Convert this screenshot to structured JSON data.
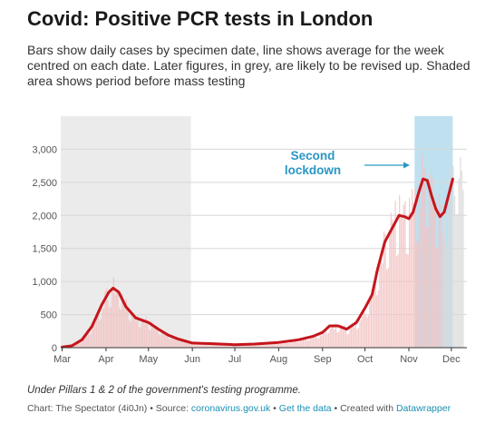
{
  "title": "Covid: Positive PCR tests in London",
  "subtitle": "Bars show daily cases by specimen date, line shows average for the week centred on each date. Later figures, in grey, are likely to be revised up. Shaded area shows period before mass testing",
  "footnote": "Under Pillars 1 & 2 of the government's testing programme.",
  "credits": {
    "prefix": "Chart: The Spectator (4i0Jn) • Source: ",
    "source_link": "coronavirus.gov.uk",
    "sep1": " • ",
    "data_link": "Get the data",
    "sep2": " • Created with ",
    "tool_link": "Datawrapper"
  },
  "colors": {
    "bars": "#f2c3c3",
    "bars_provisional": "#d9d9d9",
    "line": "#c4161c",
    "shade_pre_testing": "#ebebeb",
    "shade_lockdown": "#bfe0ef",
    "annotation": "#2a96c4"
  },
  "chart_data": {
    "type": "bar",
    "title": "Covid: Positive PCR tests in London",
    "xlabel": "",
    "ylabel": "",
    "ylim": [
      0,
      3500
    ],
    "yticks": [
      0,
      500,
      1000,
      1500,
      2000,
      2500,
      3000
    ],
    "ytick_labels": [
      "0",
      "500",
      "1,000",
      "1,500",
      "2,000",
      "2,500",
      "3,000"
    ],
    "xticks": [
      "Mar",
      "Apr",
      "May",
      "Jun",
      "Jul",
      "Aug",
      "Sep",
      "Oct",
      "Nov",
      "Dec"
    ],
    "xtick_dates": [
      "2020-03-01",
      "2020-04-01",
      "2020-05-01",
      "2020-06-01",
      "2020-07-01",
      "2020-08-01",
      "2020-09-01",
      "2020-10-01",
      "2020-11-01",
      "2020-12-01"
    ],
    "grid": true,
    "shaded_regions": [
      {
        "start": "2020-02-29",
        "end": "2020-05-31"
      },
      {
        "start": "2020-11-05",
        "end": "2020-12-02"
      }
    ],
    "annotation": {
      "text_line1": "Second",
      "text_line2": "lockdown",
      "date": "2020-11-05",
      "value": 2750
    },
    "series": [
      {
        "kind": "line",
        "points": [
          [
            "2020-03-01",
            10
          ],
          [
            "2020-03-08",
            30
          ],
          [
            "2020-03-15",
            120
          ],
          [
            "2020-03-22",
            320
          ],
          [
            "2020-03-29",
            650
          ],
          [
            "2020-04-03",
            840
          ],
          [
            "2020-04-06",
            900
          ],
          [
            "2020-04-10",
            840
          ],
          [
            "2020-04-15",
            620
          ],
          [
            "2020-04-22",
            450
          ],
          [
            "2020-05-01",
            380
          ],
          [
            "2020-05-08",
            280
          ],
          [
            "2020-05-15",
            190
          ],
          [
            "2020-05-22",
            130
          ],
          [
            "2020-06-01",
            70
          ],
          [
            "2020-06-15",
            60
          ],
          [
            "2020-07-01",
            45
          ],
          [
            "2020-07-15",
            55
          ],
          [
            "2020-08-01",
            80
          ],
          [
            "2020-08-15",
            120
          ],
          [
            "2020-08-25",
            170
          ],
          [
            "2020-09-01",
            230
          ],
          [
            "2020-09-06",
            330
          ],
          [
            "2020-09-12",
            330
          ],
          [
            "2020-09-18",
            280
          ],
          [
            "2020-09-25",
            380
          ],
          [
            "2020-10-01",
            600
          ],
          [
            "2020-10-06",
            800
          ],
          [
            "2020-10-10",
            1200
          ],
          [
            "2020-10-15",
            1600
          ],
          [
            "2020-10-20",
            1800
          ],
          [
            "2020-10-25",
            2000
          ],
          [
            "2020-10-29",
            1980
          ],
          [
            "2020-11-01",
            1950
          ],
          [
            "2020-11-04",
            2050
          ],
          [
            "2020-11-08",
            2350
          ],
          [
            "2020-11-11",
            2550
          ],
          [
            "2020-11-14",
            2530
          ],
          [
            "2020-11-17",
            2300
          ],
          [
            "2020-11-20",
            2100
          ],
          [
            "2020-11-23",
            1980
          ],
          [
            "2020-11-26",
            2050
          ],
          [
            "2020-11-29",
            2300
          ],
          [
            "2020-12-02",
            2550
          ]
        ]
      }
    ]
  }
}
